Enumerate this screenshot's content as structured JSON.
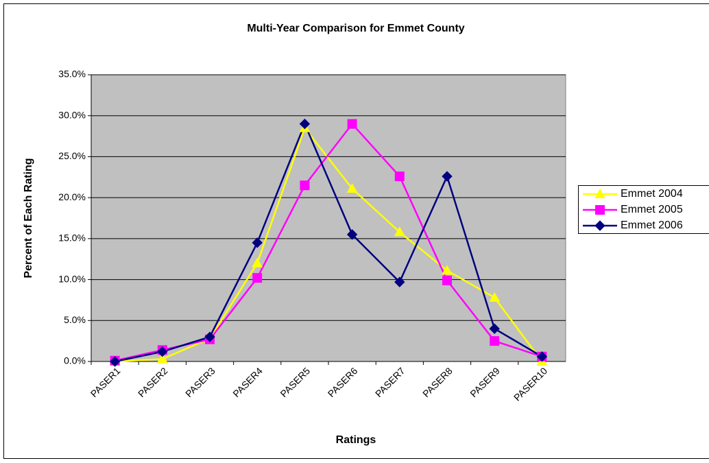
{
  "chart_data": {
    "type": "line",
    "title": "Multi-Year Comparison for Emmet County",
    "x_label": "Ratings",
    "y_label": "Percent of Each Rating",
    "categories": [
      "PASER1",
      "PASER2",
      "PASER3",
      "PASER4",
      "PASER5",
      "PASER6",
      "PASER7",
      "PASER8",
      "PASER9",
      "PASER10"
    ],
    "series": [
      {
        "name": "Emmet 2004",
        "color": "#ffff00",
        "marker": "triangle",
        "values": [
          0.0,
          0.3,
          2.8,
          12.0,
          28.5,
          21.1,
          15.8,
          11.1,
          7.8,
          0.0
        ]
      },
      {
        "name": "Emmet 2005",
        "color": "#ff00ff",
        "marker": "square",
        "values": [
          0.1,
          1.4,
          2.7,
          10.2,
          21.5,
          29.0,
          22.6,
          9.9,
          2.5,
          0.6
        ]
      },
      {
        "name": "Emmet 2006",
        "color": "#000080",
        "marker": "diamond",
        "values": [
          0.0,
          1.2,
          3.0,
          14.5,
          29.0,
          15.5,
          9.7,
          22.6,
          4.0,
          0.6
        ]
      }
    ],
    "ylim": [
      0,
      35
    ],
    "yticks": [
      {
        "value": 0,
        "label": "0.0%"
      },
      {
        "value": 5,
        "label": "5.0%"
      },
      {
        "value": 10,
        "label": "10.0%"
      },
      {
        "value": 15,
        "label": "15.0%"
      },
      {
        "value": 20,
        "label": "20.0%"
      },
      {
        "value": 25,
        "label": "25.0%"
      },
      {
        "value": 30,
        "label": "30.0%"
      },
      {
        "value": 35,
        "label": "35.0%"
      }
    ],
    "grid": true,
    "legend": "right"
  }
}
